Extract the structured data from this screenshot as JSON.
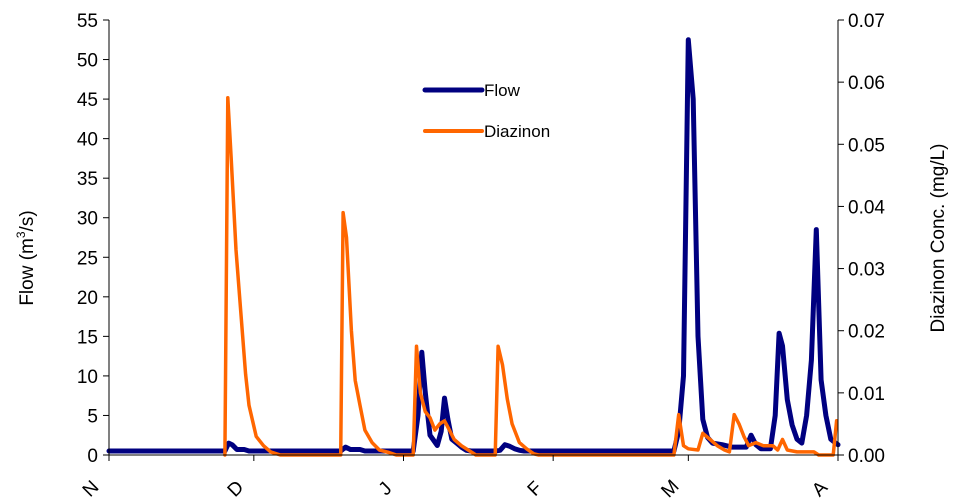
{
  "chart_data": {
    "type": "line",
    "title": "",
    "xlabel": "",
    "ylabel": "Flow (m³/s)",
    "ylabel_base": "Flow (m",
    "ylabel_sup": "3",
    "ylabel_end": "/s)",
    "y2label": "Diazinon Conc. (mg/L)",
    "x_ticks": [
      {
        "label": "N",
        "x": 0
      },
      {
        "label": "D",
        "x": 30
      },
      {
        "label": "J",
        "x": 61
      },
      {
        "label": "F",
        "x": 92
      },
      {
        "label": "M",
        "x": 120
      },
      {
        "label": "A",
        "x": 151
      }
    ],
    "xlim": [
      0,
      151
    ],
    "ylim": [
      0,
      55
    ],
    "y_ticks": [
      0,
      5,
      10,
      15,
      20,
      25,
      30,
      35,
      40,
      45,
      50,
      55
    ],
    "y2lim": [
      0,
      0.07
    ],
    "y2_ticks": [
      "0.00",
      "0.01",
      "0.02",
      "0.03",
      "0.04",
      "0.05",
      "0.06",
      "0.07"
    ],
    "legend": {
      "position": "top-center",
      "entries": [
        "Flow",
        "Diazinon"
      ]
    },
    "grid": false,
    "series": [
      {
        "name": "Flow",
        "axis": "left",
        "color": "#000080",
        "points": [
          [
            0,
            0.5
          ],
          [
            24,
            0.5
          ],
          [
            24.8,
            1.5
          ],
          [
            25.5,
            1.3
          ],
          [
            26.5,
            0.7
          ],
          [
            28,
            0.7
          ],
          [
            29,
            0.5
          ],
          [
            48,
            0.5
          ],
          [
            49,
            1.0
          ],
          [
            50,
            0.7
          ],
          [
            52,
            0.7
          ],
          [
            53,
            0.5
          ],
          [
            63,
            0.5
          ],
          [
            64,
            5
          ],
          [
            64.8,
            13
          ],
          [
            65.5,
            8
          ],
          [
            66.5,
            2.5
          ],
          [
            68,
            1.2
          ],
          [
            68.8,
            3
          ],
          [
            69.5,
            7.2
          ],
          [
            70.2,
            4.5
          ],
          [
            71,
            2
          ],
          [
            72,
            1.5
          ],
          [
            73,
            1
          ],
          [
            74,
            0.6
          ],
          [
            75,
            0.5
          ],
          [
            80,
            0.5
          ],
          [
            81,
            0.6
          ],
          [
            82,
            1.3
          ],
          [
            83,
            1.1
          ],
          [
            84,
            0.8
          ],
          [
            85,
            0.6
          ],
          [
            86,
            0.5
          ],
          [
            117,
            0.5
          ],
          [
            118,
            3
          ],
          [
            119,
            10
          ],
          [
            120,
            52.5
          ],
          [
            121,
            45
          ],
          [
            122,
            15
          ],
          [
            123,
            4.5
          ],
          [
            124,
            2.2
          ],
          [
            125,
            1.5
          ],
          [
            127,
            1.3
          ],
          [
            129,
            1
          ],
          [
            132,
            1
          ],
          [
            133,
            2.5
          ],
          [
            134,
            1.3
          ],
          [
            135,
            0.8
          ],
          [
            137,
            0.8
          ],
          [
            138,
            5
          ],
          [
            138.8,
            15.4
          ],
          [
            139.5,
            13.8
          ],
          [
            140.5,
            7
          ],
          [
            141.5,
            3.8
          ],
          [
            142.5,
            2
          ],
          [
            143.5,
            1.5
          ],
          [
            144.5,
            5
          ],
          [
            145.5,
            12
          ],
          [
            146.5,
            28.5
          ],
          [
            147.5,
            9.5
          ],
          [
            148.5,
            5
          ],
          [
            149.5,
            2
          ],
          [
            150.5,
            1.5
          ],
          [
            151,
            1.3
          ]
        ]
      },
      {
        "name": "Diazinon",
        "axis": "right",
        "color": "#FF6600",
        "points": [
          [
            24,
            0
          ],
          [
            24.6,
            0.0575
          ],
          [
            25.3,
            0.048
          ],
          [
            26.3,
            0.033
          ],
          [
            27.3,
            0.023
          ],
          [
            28.3,
            0.013
          ],
          [
            29,
            0.008
          ],
          [
            30.5,
            0.003
          ],
          [
            32,
            0.0015
          ],
          [
            33.5,
            0.0005
          ],
          [
            35.5,
            0
          ],
          [
            48,
            0
          ],
          [
            48.5,
            0.039
          ],
          [
            49.2,
            0.035
          ],
          [
            50.2,
            0.02
          ],
          [
            51,
            0.012
          ],
          [
            52,
            0.008
          ],
          [
            53,
            0.004
          ],
          [
            54.5,
            0.002
          ],
          [
            56,
            0.0008
          ],
          [
            58,
            0.0004
          ],
          [
            59.5,
            0
          ],
          [
            63,
            0
          ],
          [
            63.7,
            0.0175
          ],
          [
            64.5,
            0.01
          ],
          [
            65.5,
            0.007
          ],
          [
            66.5,
            0.006
          ],
          [
            67.5,
            0.004
          ],
          [
            68.5,
            0.005
          ],
          [
            69.5,
            0.0055
          ],
          [
            70.5,
            0.004
          ],
          [
            71.5,
            0.0025
          ],
          [
            73,
            0.0015
          ],
          [
            75,
            0.0005
          ],
          [
            76,
            0
          ],
          [
            80,
            0
          ],
          [
            80.6,
            0.0175
          ],
          [
            81.5,
            0.0145
          ],
          [
            82.5,
            0.009
          ],
          [
            83.5,
            0.005
          ],
          [
            85,
            0.002
          ],
          [
            86.5,
            0.001
          ],
          [
            88,
            0.0002
          ],
          [
            89,
            0
          ],
          [
            117,
            0
          ],
          [
            118,
            0.0065
          ],
          [
            119,
            0.0015
          ],
          [
            120,
            0.001
          ],
          [
            122,
            0.0008
          ],
          [
            123,
            0.0035
          ],
          [
            124.5,
            0.0025
          ],
          [
            126,
            0.0015
          ],
          [
            127.5,
            0.0008
          ],
          [
            128.5,
            0.0005
          ],
          [
            129.5,
            0.0065
          ],
          [
            130.5,
            0.005
          ],
          [
            131.5,
            0.003
          ],
          [
            132.5,
            0.0015
          ],
          [
            134,
            0.002
          ],
          [
            135.5,
            0.0015
          ],
          [
            137.5,
            0.0015
          ],
          [
            138.5,
            0.0008
          ],
          [
            139.5,
            0.0025
          ],
          [
            140.5,
            0.0008
          ],
          [
            142.5,
            0.0005
          ],
          [
            145,
            0.0005
          ],
          [
            146,
            0.0005
          ],
          [
            147,
            0
          ],
          [
            150,
            0
          ],
          [
            150.7,
            0.0055
          ]
        ]
      }
    ]
  }
}
